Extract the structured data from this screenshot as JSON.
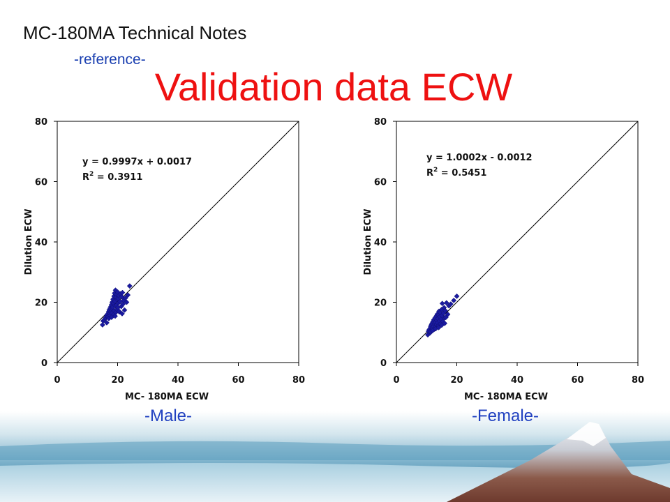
{
  "header": {
    "title": "MC-180MA Technical Notes",
    "subtitle": "-reference-"
  },
  "slide_title": "Validation data  ECW",
  "captions": {
    "male": "-Male-",
    "female": "-Female-"
  },
  "colors": {
    "title": "#ee1111",
    "subtitle": "#1a3fb0",
    "caption": "#2040c0",
    "points": "#1a1aa0"
  },
  "chart_data": [
    {
      "type": "scatter",
      "name": "male",
      "xlabel": "MC- 180MA ECW",
      "ylabel": "Dilution ECW",
      "xlim": [
        0,
        80
      ],
      "ylim": [
        0,
        80
      ],
      "xticks": [
        "0",
        "20",
        "40",
        "60",
        "80"
      ],
      "yticks": [
        "0",
        "20",
        "40",
        "60",
        "80"
      ],
      "equation": "y = 0.9997x + 0.0017",
      "r2_label": "R",
      "r2_value": " = 0.3911",
      "reference_line": [
        [
          0,
          0
        ],
        [
          80,
          80
        ]
      ],
      "points": [
        [
          15.0,
          12.5
        ],
        [
          15.2,
          13.8
        ],
        [
          15.6,
          14.2
        ],
        [
          16.0,
          14.8
        ],
        [
          16.3,
          15.5
        ],
        [
          16.6,
          16.0
        ],
        [
          16.8,
          15.2
        ],
        [
          17.0,
          16.8
        ],
        [
          17.2,
          17.4
        ],
        [
          17.4,
          16.2
        ],
        [
          17.5,
          18.0
        ],
        [
          17.6,
          15.6
        ],
        [
          17.8,
          18.6
        ],
        [
          17.9,
          17.0
        ],
        [
          18.0,
          19.2
        ],
        [
          18.1,
          16.4
        ],
        [
          18.2,
          20.0
        ],
        [
          18.3,
          17.8
        ],
        [
          18.4,
          18.4
        ],
        [
          18.5,
          21.0
        ],
        [
          18.6,
          15.8
        ],
        [
          18.7,
          19.6
        ],
        [
          18.8,
          22.0
        ],
        [
          18.9,
          17.2
        ],
        [
          19.0,
          23.0
        ],
        [
          19.1,
          20.4
        ],
        [
          19.2,
          18.8
        ],
        [
          19.3,
          24.0
        ],
        [
          19.4,
          16.6
        ],
        [
          19.5,
          21.6
        ],
        [
          19.6,
          19.0
        ],
        [
          19.7,
          22.6
        ],
        [
          19.8,
          17.6
        ],
        [
          19.9,
          20.8
        ],
        [
          20.0,
          23.4
        ],
        [
          20.1,
          18.2
        ],
        [
          20.2,
          21.2
        ],
        [
          20.3,
          19.8
        ],
        [
          20.4,
          22.2
        ],
        [
          20.6,
          16.8
        ],
        [
          20.8,
          20.2
        ],
        [
          21.0,
          22.8
        ],
        [
          21.2,
          18.6
        ],
        [
          21.4,
          21.8
        ],
        [
          21.6,
          23.2
        ],
        [
          21.8,
          19.4
        ],
        [
          22.0,
          20.6
        ],
        [
          22.3,
          17.4
        ],
        [
          22.6,
          21.4
        ],
        [
          23.0,
          20.0
        ],
        [
          23.4,
          22.4
        ],
        [
          24.0,
          25.4
        ],
        [
          16.4,
          13.2
        ],
        [
          17.1,
          14.6
        ],
        [
          18.0,
          15.0
        ],
        [
          19.2,
          15.4
        ],
        [
          20.5,
          17.0
        ],
        [
          21.5,
          16.2
        ]
      ]
    },
    {
      "type": "scatter",
      "name": "female",
      "xlabel": "MC- 180MA ECW",
      "ylabel": "Dilution ECW",
      "xlim": [
        0,
        80
      ],
      "ylim": [
        0,
        80
      ],
      "xticks": [
        "0",
        "20",
        "40",
        "60",
        "80"
      ],
      "yticks": [
        "0",
        "20",
        "40",
        "60",
        "80"
      ],
      "equation": "y = 1.0002x -  0.0012",
      "r2_label": "R",
      "r2_value": " = 0.5451",
      "reference_line": [
        [
          0,
          0
        ],
        [
          80,
          80
        ]
      ],
      "points": [
        [
          10.4,
          9.2
        ],
        [
          10.6,
          10.4
        ],
        [
          10.9,
          11.0
        ],
        [
          11.1,
          9.8
        ],
        [
          11.3,
          11.8
        ],
        [
          11.5,
          12.4
        ],
        [
          11.6,
          10.8
        ],
        [
          11.8,
          13.0
        ],
        [
          12.0,
          11.4
        ],
        [
          12.1,
          13.6
        ],
        [
          12.3,
          12.0
        ],
        [
          12.4,
          14.2
        ],
        [
          12.5,
          11.0
        ],
        [
          12.7,
          12.8
        ],
        [
          12.8,
          14.8
        ],
        [
          12.9,
          13.4
        ],
        [
          13.0,
          11.8
        ],
        [
          13.2,
          15.4
        ],
        [
          13.3,
          12.6
        ],
        [
          13.4,
          14.0
        ],
        [
          13.5,
          16.0
        ],
        [
          13.6,
          13.2
        ],
        [
          13.8,
          14.6
        ],
        [
          13.9,
          12.2
        ],
        [
          14.0,
          15.8
        ],
        [
          14.1,
          17.0
        ],
        [
          14.2,
          13.8
        ],
        [
          14.4,
          15.2
        ],
        [
          14.5,
          16.6
        ],
        [
          14.6,
          12.8
        ],
        [
          14.8,
          14.4
        ],
        [
          15.0,
          17.6
        ],
        [
          15.1,
          15.6
        ],
        [
          15.2,
          19.6
        ],
        [
          15.4,
          13.6
        ],
        [
          15.6,
          16.4
        ],
        [
          15.8,
          18.2
        ],
        [
          16.0,
          14.8
        ],
        [
          16.2,
          17.2
        ],
        [
          16.4,
          15.0
        ],
        [
          16.6,
          19.8
        ],
        [
          17.0,
          16.0
        ],
        [
          17.4,
          18.8
        ],
        [
          18.0,
          19.4
        ],
        [
          19.0,
          20.6
        ],
        [
          20.0,
          22.0
        ],
        [
          11.2,
          10.2
        ],
        [
          12.0,
          10.6
        ],
        [
          13.0,
          11.2
        ],
        [
          14.0,
          11.6
        ],
        [
          15.0,
          12.4
        ],
        [
          16.0,
          13.0
        ]
      ]
    }
  ]
}
